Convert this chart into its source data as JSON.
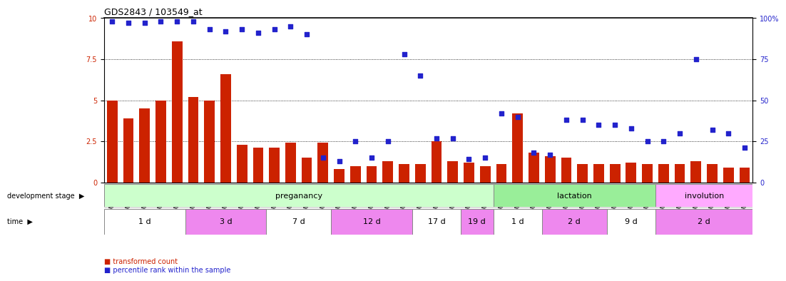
{
  "title": "GDS2843 / 103549_at",
  "samples": [
    "GSM202666",
    "GSM202667",
    "GSM202668",
    "GSM202669",
    "GSM202670",
    "GSM202671",
    "GSM202672",
    "GSM202673",
    "GSM202674",
    "GSM202675",
    "GSM202676",
    "GSM202677",
    "GSM202678",
    "GSM202679",
    "GSM202680",
    "GSM202681",
    "GSM202682",
    "GSM202683",
    "GSM202684",
    "GSM202685",
    "GSM202686",
    "GSM202687",
    "GSM202688",
    "GSM202689",
    "GSM202690",
    "GSM202691",
    "GSM202692",
    "GSM202693",
    "GSM202694",
    "GSM202695",
    "GSM202696",
    "GSM202697",
    "GSM202698",
    "GSM202699",
    "GSM202700",
    "GSM202701",
    "GSM202702",
    "GSM202703",
    "GSM202704",
    "GSM202705"
  ],
  "bar_values": [
    5.0,
    3.9,
    4.5,
    5.0,
    8.6,
    5.2,
    5.0,
    6.6,
    2.3,
    2.1,
    2.1,
    2.4,
    1.5,
    2.4,
    0.8,
    1.0,
    1.0,
    1.3,
    1.1,
    1.1,
    2.5,
    1.3,
    1.2,
    1.0,
    1.1,
    4.2,
    1.8,
    1.6,
    1.5,
    1.1,
    1.1,
    1.1,
    1.2,
    1.1,
    1.1,
    1.1,
    1.3,
    1.1,
    0.9,
    0.9
  ],
  "percentile_values": [
    98,
    97,
    97,
    98,
    98,
    98,
    93,
    92,
    93,
    91,
    93,
    95,
    90,
    15,
    13,
    25,
    15,
    25,
    78,
    65,
    27,
    27,
    14,
    15,
    42,
    40,
    18,
    17,
    38,
    38,
    35,
    35,
    33,
    25,
    25,
    30,
    75,
    32,
    30,
    21
  ],
  "bar_color": "#cc2200",
  "dot_color": "#2222cc",
  "ylim_left": [
    0,
    10
  ],
  "ylim_right": [
    0,
    100
  ],
  "yticks_left": [
    0,
    2.5,
    5.0,
    7.5,
    10
  ],
  "ytick_labels_left": [
    "0",
    "2.5",
    "5",
    "7.5",
    "10"
  ],
  "yticks_right": [
    0,
    25,
    50,
    75,
    100
  ],
  "ytick_labels_right": [
    "0",
    "25",
    "50",
    "75",
    "100%"
  ],
  "development_stages": [
    {
      "label": "preganancy",
      "start": 0,
      "end": 24,
      "color": "#ccffcc"
    },
    {
      "label": "lactation",
      "start": 24,
      "end": 34,
      "color": "#99ee99"
    },
    {
      "label": "involution",
      "start": 34,
      "end": 40,
      "color": "#ffaaff"
    }
  ],
  "time_periods": [
    {
      "label": "1 d",
      "start": 0,
      "end": 5,
      "color": "#ffffff"
    },
    {
      "label": "3 d",
      "start": 5,
      "end": 10,
      "color": "#ee88ee"
    },
    {
      "label": "7 d",
      "start": 10,
      "end": 14,
      "color": "#ffffff"
    },
    {
      "label": "12 d",
      "start": 14,
      "end": 19,
      "color": "#ee88ee"
    },
    {
      "label": "17 d",
      "start": 19,
      "end": 22,
      "color": "#ffffff"
    },
    {
      "label": "19 d",
      "start": 22,
      "end": 24,
      "color": "#ee88ee"
    },
    {
      "label": "1 d",
      "start": 24,
      "end": 27,
      "color": "#ffffff"
    },
    {
      "label": "2 d",
      "start": 27,
      "end": 31,
      "color": "#ee88ee"
    },
    {
      "label": "9 d",
      "start": 31,
      "end": 34,
      "color": "#ffffff"
    },
    {
      "label": "2 d",
      "start": 34,
      "end": 40,
      "color": "#ee88ee"
    }
  ],
  "bg_color": "#ffffff",
  "xtick_bg": "#dddddd",
  "label_fontsize": 7,
  "tick_fontsize": 7,
  "sample_fontsize": 5.5,
  "stage_fontsize": 8,
  "time_fontsize": 8
}
